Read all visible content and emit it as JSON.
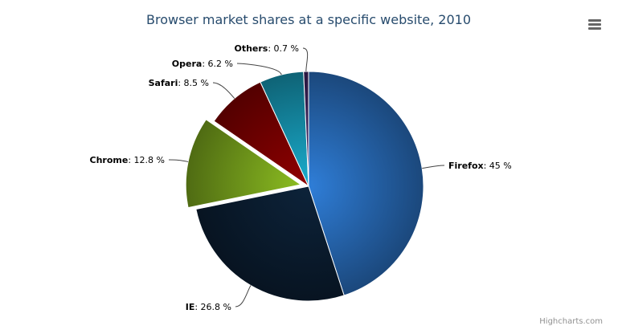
{
  "chart_data": {
    "type": "pie",
    "title": "Browser market shares at a specific website, 2010",
    "series": [
      {
        "name": "Firefox",
        "value": 45.0,
        "color": "#2f7ed8",
        "sliced": false
      },
      {
        "name": "IE",
        "value": 26.8,
        "color": "#0d233a",
        "sliced": false
      },
      {
        "name": "Chrome",
        "value": 12.8,
        "color": "#8bbc21",
        "sliced": true
      },
      {
        "name": "Safari",
        "value": 8.5,
        "color": "#910000",
        "sliced": false
      },
      {
        "name": "Opera",
        "value": 6.2,
        "color": "#1aadce",
        "sliced": false
      },
      {
        "name": "Others",
        "value": 0.7,
        "color": "#492970",
        "sliced": false
      }
    ],
    "label_format": "{name}: {value} %",
    "legend": "none"
  },
  "menu_icon": "hamburger-menu-icon",
  "credits": "Highcharts.com"
}
